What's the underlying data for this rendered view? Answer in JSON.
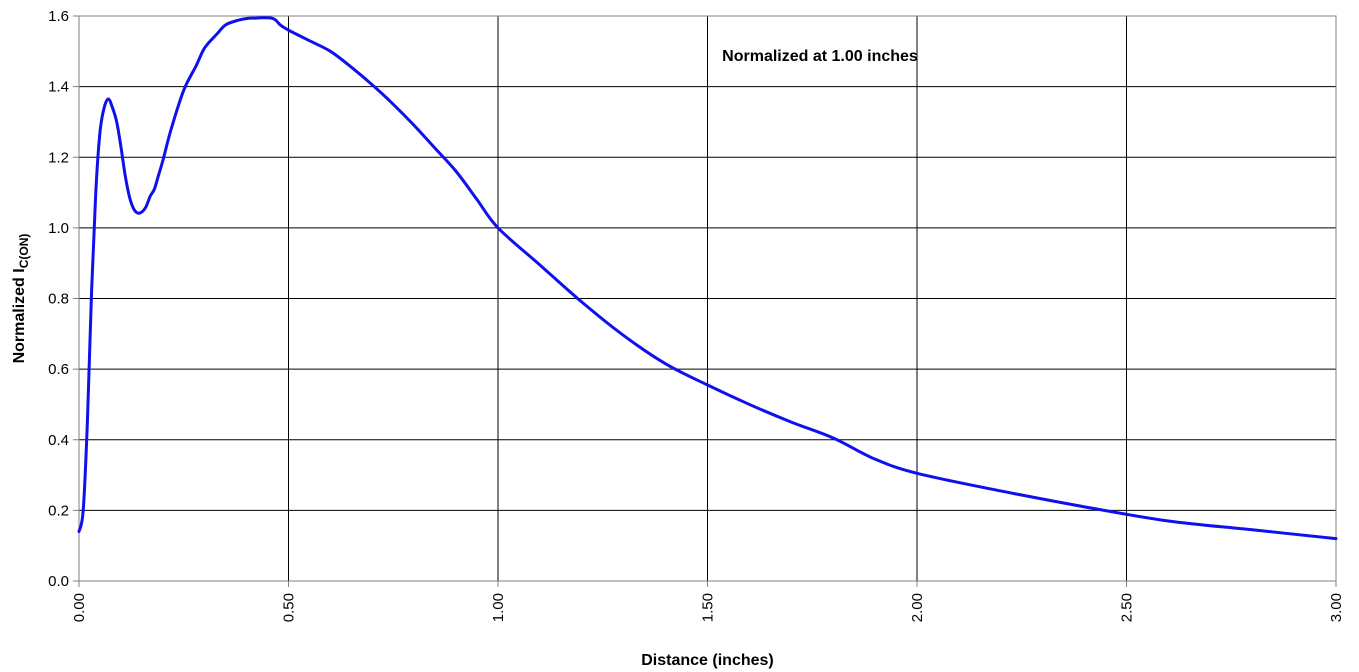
{
  "chart_data": {
    "type": "line",
    "title": "",
    "xlabel": "Distance (inches)",
    "ylabel_main": "Normalized I",
    "ylabel_sub": "C(ON)",
    "annotation": "Normalized at 1.00 inches",
    "xlim": [
      0,
      3
    ],
    "ylim": [
      0,
      1.6
    ],
    "x_ticks": [
      "0.00",
      "0.50",
      "1.00",
      "1.50",
      "2.00",
      "2.50",
      "3.00"
    ],
    "y_ticks": [
      "0.0",
      "0.2",
      "0.4",
      "0.6",
      "0.8",
      "1.0",
      "1.2",
      "1.4",
      "1.6"
    ],
    "grid": true,
    "legend": "none",
    "series": [
      {
        "color": "#1010ee",
        "x": [
          0.0,
          0.01,
          0.02,
          0.03,
          0.04,
          0.05,
          0.06,
          0.07,
          0.08,
          0.09,
          0.1,
          0.11,
          0.12,
          0.13,
          0.14,
          0.15,
          0.16,
          0.17,
          0.18,
          0.19,
          0.2,
          0.22,
          0.25,
          0.28,
          0.3,
          0.33,
          0.35,
          0.38,
          0.4,
          0.42,
          0.44,
          0.46,
          0.47,
          0.48,
          0.5,
          0.55,
          0.6,
          0.65,
          0.7,
          0.75,
          0.8,
          0.85,
          0.9,
          0.95,
          1.0,
          1.1,
          1.2,
          1.3,
          1.4,
          1.5,
          1.6,
          1.7,
          1.8,
          1.9,
          2.0,
          2.2,
          2.4,
          2.6,
          2.8,
          3.0
        ],
        "y": [
          0.14,
          0.2,
          0.45,
          0.82,
          1.1,
          1.27,
          1.34,
          1.365,
          1.34,
          1.3,
          1.23,
          1.15,
          1.09,
          1.055,
          1.042,
          1.045,
          1.06,
          1.09,
          1.11,
          1.15,
          1.19,
          1.28,
          1.39,
          1.46,
          1.51,
          1.55,
          1.575,
          1.588,
          1.593,
          1.594,
          1.595,
          1.594,
          1.588,
          1.575,
          1.56,
          1.53,
          1.5,
          1.455,
          1.405,
          1.35,
          1.29,
          1.225,
          1.16,
          1.08,
          1.0,
          0.895,
          0.79,
          0.695,
          0.615,
          0.555,
          0.5,
          0.45,
          0.405,
          0.345,
          0.305,
          0.255,
          0.21,
          0.17,
          0.145,
          0.12
        ]
      }
    ]
  }
}
